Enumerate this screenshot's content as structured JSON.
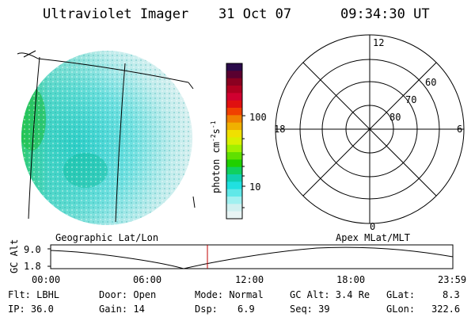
{
  "header": {
    "title": "Ultraviolet Imager",
    "date": "31 Oct 07",
    "time": "09:34:30 UT"
  },
  "colorbar": {
    "label_html": "photon cm",
    "label_exp1": "-2",
    "label_s": "s",
    "label_exp2": "-1",
    "ticks": [
      "100",
      "10"
    ],
    "colors": [
      "#2a0a4a",
      "#5a0030",
      "#8a0020",
      "#b00020",
      "#d00030",
      "#e01010",
      "#f04000",
      "#f08000",
      "#f0b000",
      "#f0e000",
      "#d8f000",
      "#a0f000",
      "#60e000",
      "#20d000",
      "#10d060",
      "#10d0b0",
      "#20e0e0",
      "#60e8e8",
      "#a0f0f0",
      "#d0f0f0",
      "#e8f4f4"
    ]
  },
  "polar": {
    "labels": {
      "top": "12",
      "bottom": "0",
      "left": "18",
      "right": "6"
    },
    "lat_labels": [
      "60",
      "70",
      "80"
    ]
  },
  "strip": {
    "left_label": "Geographic Lat/Lon",
    "right_label": "Apex MLat/MLT",
    "axis_label": "GC Alt",
    "y_ticks": [
      "9.0",
      "1.8"
    ],
    "x_ticks": [
      "00:00",
      "06:00",
      "12:00",
      "18:00",
      "23:59"
    ]
  },
  "info": {
    "row1": {
      "flt": "Flt: LBHL",
      "door": "Door: Open",
      "mode": "Mode: Normal",
      "gcalt": "GC Alt: 3.4 Re",
      "glat_label": "GLat:",
      "glat_value": "8.3"
    },
    "row2": {
      "ip": "IP: 36.0",
      "gain": "Gain: 14",
      "dsp_label": "Dsp:",
      "dsp_value": "6.9",
      "seq": "Seq: 39",
      "glon_label": "GLon:",
      "glon_value": "322.6"
    }
  }
}
